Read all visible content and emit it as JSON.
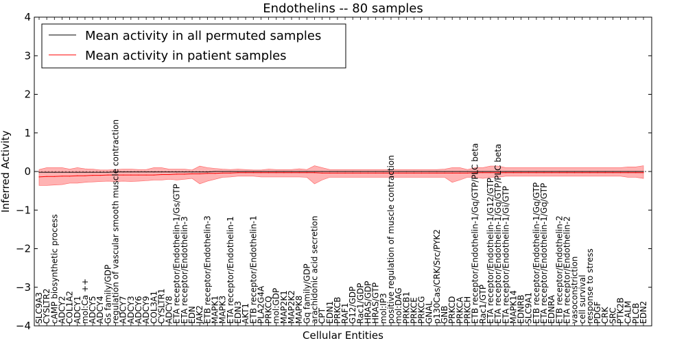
{
  "chart_data": {
    "type": "line",
    "title": "Endothelins -- 80 samples",
    "xlabel": "Cellular Entities",
    "ylabel": "Inferred Activity",
    "ylim": [
      -4,
      4
    ],
    "yticks": [
      -4,
      -3,
      -2,
      -1,
      0,
      1,
      2,
      3,
      4
    ],
    "ytick_labels": [
      "−4",
      "−3",
      "−2",
      "−1",
      "0",
      "1",
      "2",
      "3",
      "4"
    ],
    "legend": {
      "position": "top-left",
      "entries": [
        {
          "label": "Mean activity in all permuted samples",
          "color": "#000000"
        },
        {
          "label": "Mean activity in patient samples",
          "color": "#ff0000"
        }
      ]
    },
    "categories": [
      "SLC9A3",
      "CYSLTR2",
      "cAMP biosynthetic process",
      "ADCY2",
      "COL1A2",
      "ADCY1",
      "mol:Ca ++",
      "ADCY5",
      "ADCY4",
      "Gs family/GDP",
      "regulation of vascular smooth muscle contraction",
      "ADCY7",
      "ADCY3",
      "ADCY6",
      "ADCY9",
      "COL3A1",
      "CYSLTR1",
      "ADCY8",
      "ETA receptor/Endothelin-1/Gs/GTP",
      "ETA receptor/Endothelin-3",
      "EDN",
      "JAK2",
      "ETB receptor/Endothelin-3",
      "MAPK1",
      "MAPK3",
      "ETA receptor/Endothelin-1",
      "EDN3",
      "AKT1",
      "ETB receptor/Endothelin-1",
      "PLA2G4A",
      "PRKCQ",
      "mol:GDP",
      "MAP2K1",
      "MAP2K2",
      "MAPK8",
      "Gq family/GDP",
      "arachidonic acid secretion",
      "CPT",
      "EDN1",
      "PRKCB",
      "RAF1",
      "G12/GDP",
      "Rac1/GDP",
      "HRAS/GDP",
      "HRAS/GTP",
      "mol:IP3",
      "positive regulation of muscle contraction",
      "mol:DAG",
      "PRKCB1",
      "PRKCE",
      "PRKCG",
      "GNAL",
      "p130Cas/CRK/Src/PYK2",
      "GNB",
      "PRKCD",
      "PRKCA",
      "PRKCH",
      "ETB receptor/Endothelin-1/Gq/GTP/PLC beta",
      "Rac1/GTP",
      "ETA receptor/Endothelin-1/G12/GTP",
      "ETA receptor/Endothelin-1/Gq/GTP/PLC beta",
      "ETA receptor/Endothelin-1/Gi/GTP",
      "MAPK14",
      "EDNRB",
      "SLC9A1",
      "ETB receptor/Endothelin-1/Gq/GTP",
      "ETA receptor/Endothelin-1/Gq/GTP",
      "EDNRA",
      "ETB receptor/Endothelin-2",
      "ETA receptor/Endothelin-2",
      "vasoconstriction",
      "cell survival",
      "response to stress",
      "PDGF",
      "CRK",
      "SRC",
      "PTK2B",
      "CALM",
      "PLCB",
      "EDN2"
    ],
    "series": [
      {
        "name": "Mean activity in all permuted samples",
        "color": "#000000",
        "values": [
          -0.02,
          -0.02,
          -0.02,
          -0.02,
          -0.02,
          -0.02,
          -0.02,
          -0.02,
          -0.02,
          -0.02,
          -0.01,
          -0.01,
          -0.01,
          -0.01,
          -0.01,
          -0.01,
          -0.01,
          -0.01,
          -0.01,
          -0.01,
          -0.01,
          -0.01,
          -0.01,
          0.0,
          0.0,
          0.0,
          0.0,
          0.0,
          0.0,
          0.0,
          0.0,
          0.0,
          0.0,
          0.0,
          0.0,
          0.0,
          0.0,
          0.0,
          0.0,
          0.0,
          0.0,
          0.0,
          0.0,
          0.0,
          0.0,
          0.0,
          0.0,
          0.0,
          0.0,
          0.0,
          0.0,
          0.0,
          0.0,
          0.0,
          0.0,
          0.0,
          0.0,
          0.0,
          0.0,
          0.0,
          0.0,
          0.0,
          0.0,
          0.0,
          0.0,
          0.0,
          0.0,
          0.0,
          0.0,
          0.0,
          0.0,
          0.0,
          0.0,
          0.0,
          0.0,
          0.0,
          0.0,
          0.0,
          0.0,
          0.0
        ]
      },
      {
        "name": "Mean activity in patient samples",
        "color": "#ff0000",
        "values": [
          -0.14,
          -0.13,
          -0.13,
          -0.12,
          -0.12,
          -0.11,
          -0.11,
          -0.1,
          -0.1,
          -0.09,
          -0.09,
          -0.09,
          -0.09,
          -0.09,
          -0.09,
          -0.09,
          -0.08,
          -0.08,
          -0.07,
          -0.07,
          -0.06,
          -0.06,
          -0.05,
          -0.05,
          -0.04,
          -0.04,
          -0.03,
          -0.03,
          -0.03,
          -0.03,
          -0.03,
          -0.03,
          -0.03,
          -0.03,
          -0.03,
          -0.03,
          -0.03,
          -0.04,
          -0.04,
          -0.04,
          -0.04,
          -0.04,
          -0.04,
          -0.04,
          -0.04,
          -0.04,
          -0.04,
          -0.04,
          -0.04,
          -0.04,
          -0.04,
          -0.04,
          -0.04,
          -0.04,
          -0.04,
          -0.04,
          -0.04,
          -0.03,
          -0.03,
          -0.03,
          -0.03,
          -0.03,
          -0.03,
          -0.03,
          -0.03,
          -0.03,
          -0.03,
          -0.03,
          -0.03,
          -0.03,
          -0.03,
          -0.03,
          -0.03,
          -0.03,
          -0.03,
          -0.03,
          -0.03,
          -0.03,
          -0.03,
          -0.03
        ]
      }
    ],
    "band": {
      "name": "Patient samples spread",
      "color": "#ff8080",
      "upper": [
        0.05,
        0.1,
        0.1,
        0.1,
        0.06,
        0.1,
        0.07,
        0.06,
        0.04,
        0.04,
        0.05,
        0.06,
        0.06,
        0.05,
        0.05,
        0.1,
        0.1,
        0.06,
        0.06,
        0.06,
        0.04,
        0.14,
        0.1,
        0.08,
        0.06,
        0.05,
        0.06,
        0.05,
        0.04,
        0.04,
        0.06,
        0.05,
        0.05,
        0.05,
        0.07,
        0.05,
        0.15,
        0.1,
        0.05,
        0.05,
        0.05,
        0.05,
        0.05,
        0.05,
        0.05,
        0.05,
        0.05,
        0.05,
        0.05,
        0.05,
        0.05,
        0.05,
        0.05,
        0.06,
        0.1,
        0.1,
        0.05,
        0.1,
        0.1,
        0.14,
        0.14,
        0.1,
        0.1,
        0.1,
        0.1,
        0.1,
        0.1,
        0.1,
        0.1,
        0.1,
        0.1,
        0.1,
        0.1,
        0.1,
        0.1,
        0.1,
        0.1,
        0.12,
        0.12,
        0.15
      ],
      "lower": [
        -0.36,
        -0.36,
        -0.35,
        -0.34,
        -0.3,
        -0.3,
        -0.28,
        -0.27,
        -0.26,
        -0.25,
        -0.26,
        -0.25,
        -0.26,
        -0.25,
        -0.24,
        -0.22,
        -0.22,
        -0.2,
        -0.22,
        -0.2,
        -0.18,
        -0.32,
        -0.25,
        -0.2,
        -0.15,
        -0.14,
        -0.12,
        -0.12,
        -0.12,
        -0.14,
        -0.14,
        -0.14,
        -0.14,
        -0.14,
        -0.14,
        -0.15,
        -0.32,
        -0.22,
        -0.15,
        -0.15,
        -0.15,
        -0.15,
        -0.15,
        -0.15,
        -0.15,
        -0.15,
        -0.15,
        -0.15,
        -0.15,
        -0.15,
        -0.15,
        -0.15,
        -0.15,
        -0.15,
        -0.28,
        -0.22,
        -0.15,
        -0.15,
        -0.18,
        -0.15,
        -0.15,
        -0.12,
        -0.12,
        -0.12,
        -0.12,
        -0.12,
        -0.12,
        -0.12,
        -0.12,
        -0.12,
        -0.12,
        -0.12,
        -0.12,
        -0.12,
        -0.12,
        -0.12,
        -0.12,
        -0.15,
        -0.15,
        -0.18
      ]
    }
  }
}
